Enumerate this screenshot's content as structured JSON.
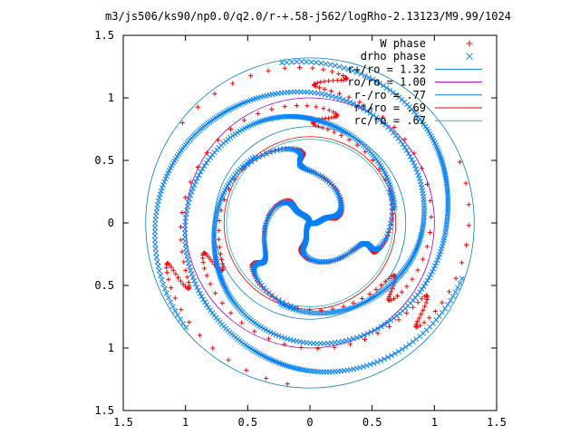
{
  "chart_data": {
    "type": "scatter",
    "title": "m3/js506/ks90/np0.0/q2.0/r-+.58-j562/logRho-2.13123/M9.99/1024",
    "xlabel": "",
    "ylabel": "",
    "xlim": [
      -1.5,
      1.5
    ],
    "ylim": [
      -1.5,
      1.5
    ],
    "grid": false,
    "legend_position": "top-right",
    "xticks": [
      -1.5,
      -1,
      -0.5,
      0,
      0.5,
      1,
      1.5
    ],
    "xtick_labels": [
      "1.5",
      "1",
      "0.5",
      "0",
      "0.5",
      "1",
      "1.5"
    ],
    "yticks": [
      1.5,
      1,
      0.5,
      0,
      -0.5,
      -1,
      -1.5
    ],
    "ytick_labels": [
      "1.5",
      "1",
      "0.5",
      "0",
      "0.5",
      "1",
      "1.5"
    ],
    "series": [
      {
        "name": "W phase",
        "marker": "+",
        "color": "#ff0000",
        "arms": [
          {
            "r0": 0.0,
            "r1": 0.69,
            "theta0": 90,
            "phase_swing": 170,
            "wiggle": 18,
            "npts": 110
          },
          {
            "r0": 0.0,
            "r1": 0.69,
            "theta0": 210,
            "phase_swing": 170,
            "wiggle": 18,
            "npts": 110
          },
          {
            "r0": 0.0,
            "r1": 0.69,
            "theta0": 330,
            "phase_swing": 170,
            "wiggle": 18,
            "npts": 110
          },
          {
            "r0": 0.69,
            "r1": 1.3,
            "theta0": 262,
            "phase_swing": 240,
            "wiggle": 30,
            "npts": 80
          },
          {
            "r0": 0.69,
            "r1": 1.3,
            "theta0": 22,
            "phase_swing": 240,
            "wiggle": 30,
            "npts": 80
          },
          {
            "r0": 0.69,
            "r1": 1.3,
            "theta0": 142,
            "phase_swing": 240,
            "wiggle": 30,
            "npts": 80
          }
        ]
      },
      {
        "name": "drho phase",
        "marker": "x",
        "color": "#0080ff",
        "arms": [
          {
            "r0": 0.0,
            "r1": 0.69,
            "theta0": 95,
            "phase_swing": 165,
            "wiggle": 16,
            "npts": 120
          },
          {
            "r0": 0.0,
            "r1": 0.69,
            "theta0": 215,
            "phase_swing": 165,
            "wiggle": 16,
            "npts": 120
          },
          {
            "r0": 0.0,
            "r1": 0.69,
            "theta0": 335,
            "phase_swing": 165,
            "wiggle": 16,
            "npts": 120
          },
          {
            "r0": 0.69,
            "r1": 1.3,
            "theta0": 250,
            "phase_swing": 330,
            "wiggle": 10,
            "npts": 260
          },
          {
            "r0": 0.69,
            "r1": 1.3,
            "theta0": 10,
            "phase_swing": 330,
            "wiggle": 10,
            "npts": 260
          },
          {
            "r0": 0.69,
            "r1": 1.3,
            "theta0": 130,
            "phase_swing": 330,
            "wiggle": 10,
            "npts": 260
          }
        ]
      },
      {
        "name": "r+/ro = 1.32",
        "type": "circle",
        "radius": 1.32,
        "color": "#0080c0"
      },
      {
        "name": "ro/ro = 1.00",
        "type": "circle",
        "radius": 1.0,
        "color": "#a000c0"
      },
      {
        "name": "r-/ro = .77",
        "type": "circle",
        "radius": 0.77,
        "color": "#0080c0"
      },
      {
        "name": "r*/ro = .69",
        "type": "circle",
        "radius": 0.69,
        "color": "#e00000"
      },
      {
        "name": "rc/ro = .67",
        "type": "circle",
        "radius": 0.67,
        "color": "#20c0c0"
      }
    ]
  }
}
